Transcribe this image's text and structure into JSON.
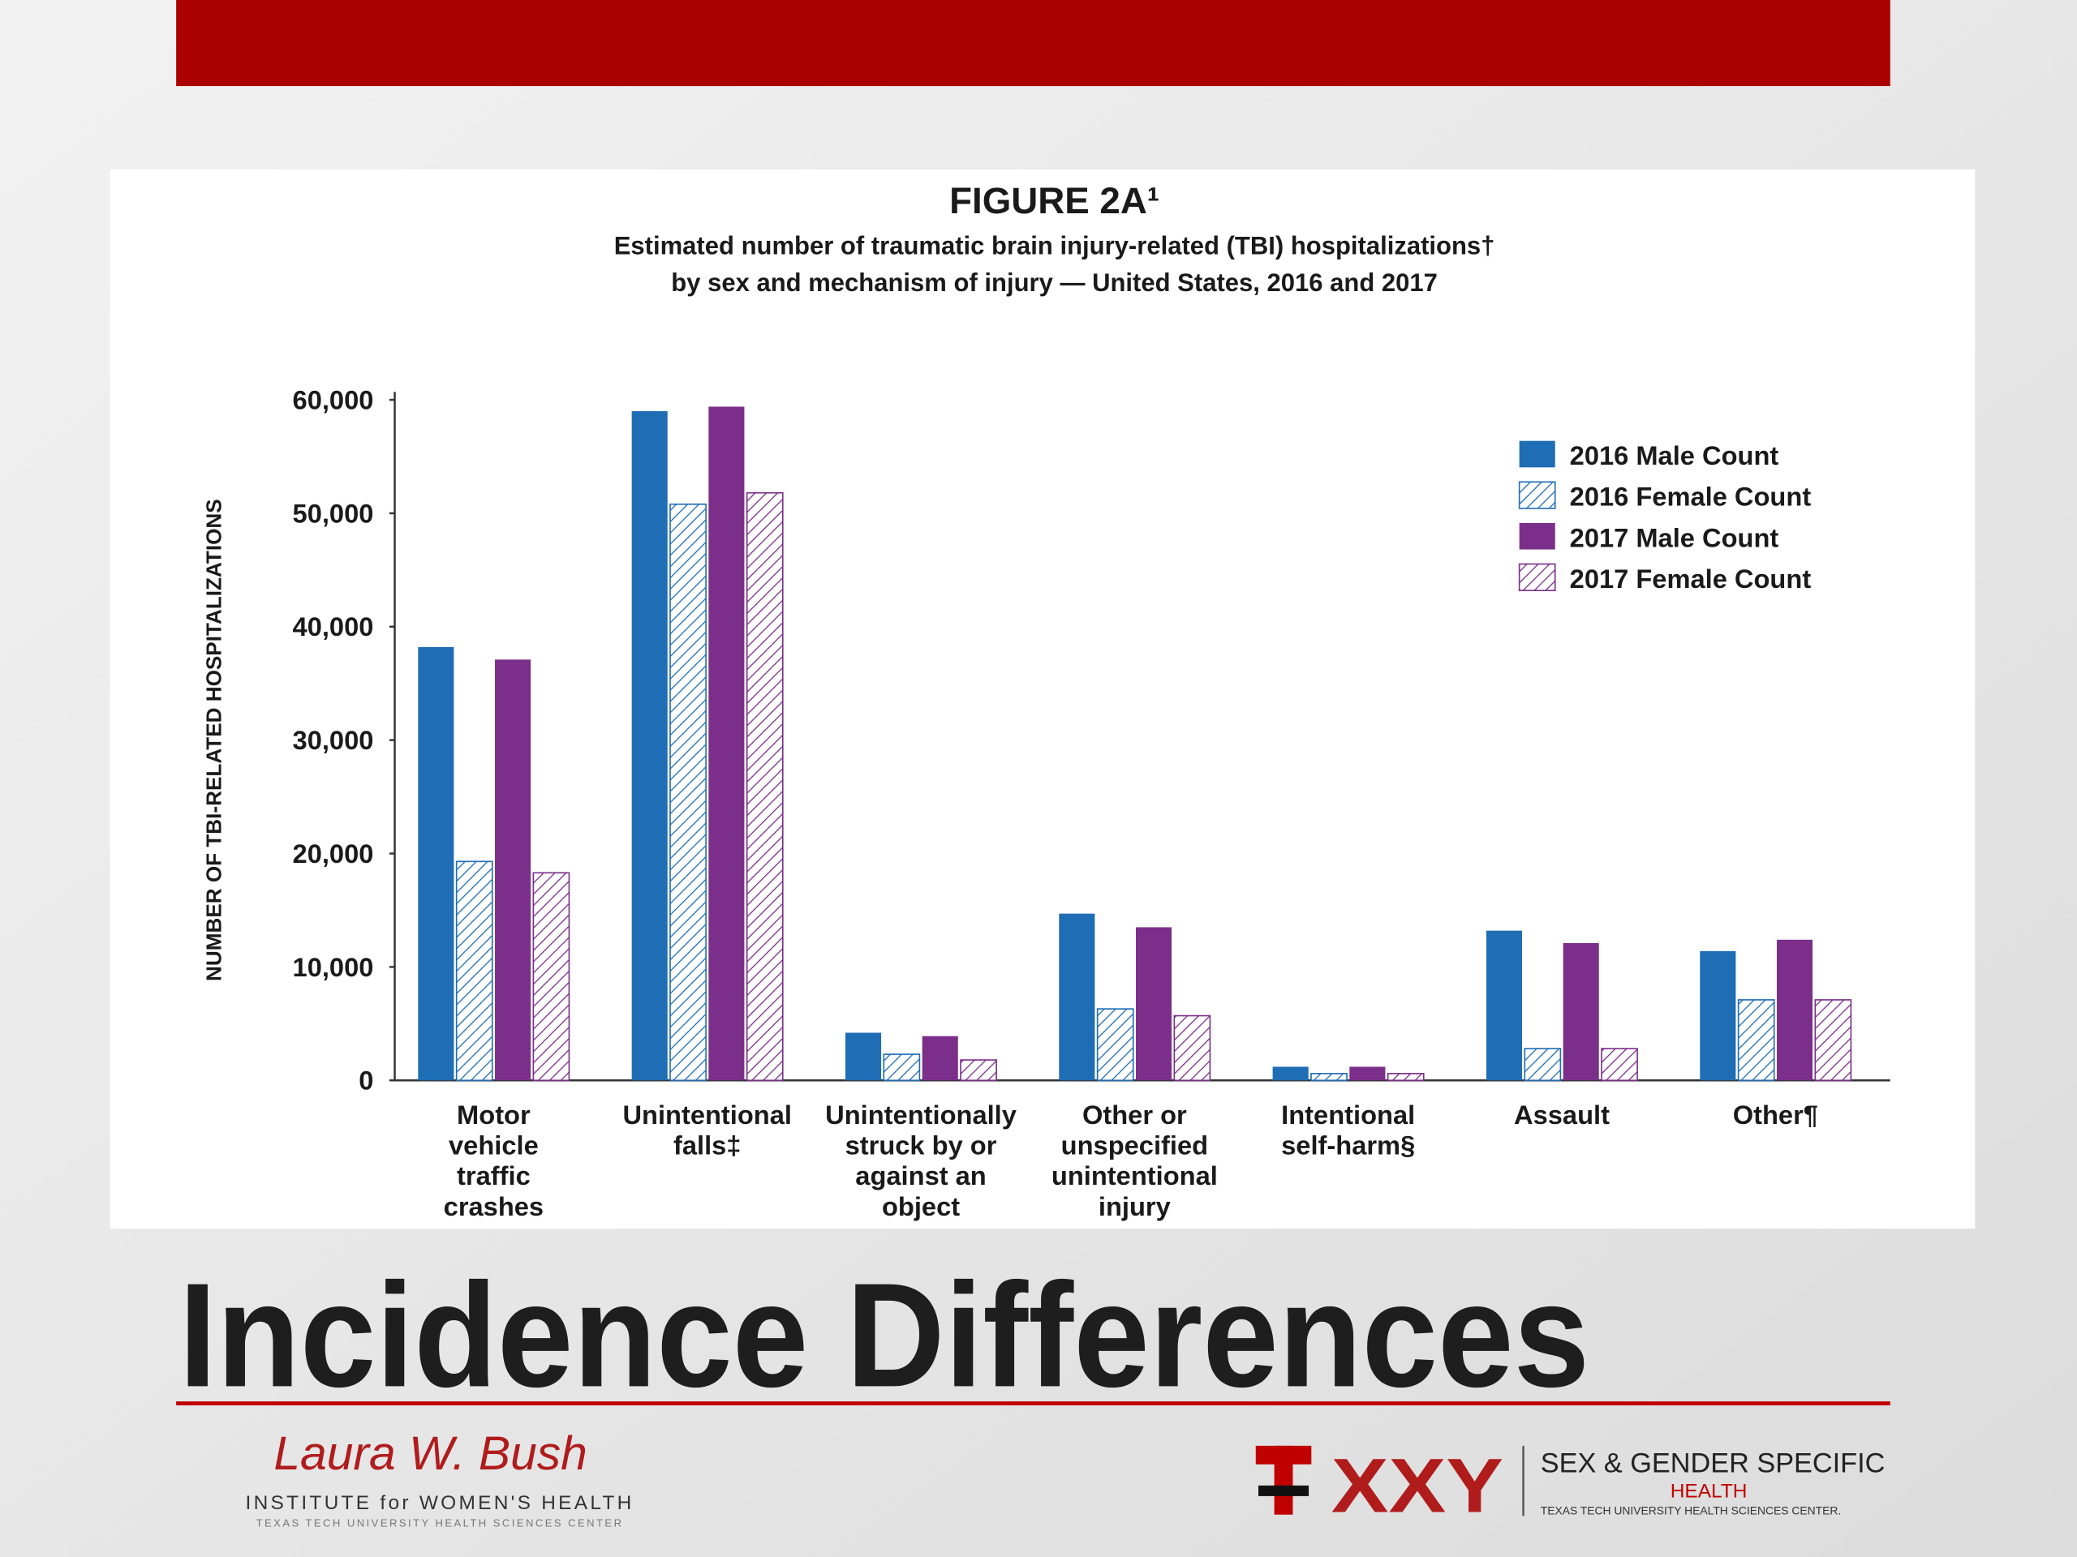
{
  "chart_data": {
    "type": "bar",
    "title": "FIGURE 2A¹",
    "subtitle": [
      "Estimated number of traumatic brain injury-related (TBI) hospitalizations†",
      "by sex and mechanism of injury — United States, 2016 and 2017"
    ],
    "y_label": "NUMBER OF TBI-RELATED HOSPITALIZATIONS",
    "categories": [
      [
        "Motor",
        "vehicle",
        "traffic",
        "crashes"
      ],
      [
        "Unintentional",
        "falls‡"
      ],
      [
        "Unintentionally",
        "struck by or",
        "against an",
        "object"
      ],
      [
        "Other or",
        "unspecified",
        "unintentional",
        "injury"
      ],
      [
        "Intentional",
        "self-harm§"
      ],
      [
        "Assault"
      ],
      [
        "Other¶"
      ]
    ],
    "series": [
      {
        "name": "2016 Male Count",
        "color": "#1f6db5",
        "hatch": false,
        "values": [
          38200,
          59000,
          4200,
          14700,
          1200,
          13200,
          11400
        ]
      },
      {
        "name": "2016 Female Count",
        "color": "#1f6db5",
        "hatch": true,
        "values": [
          19300,
          50800,
          2300,
          6300,
          600,
          2800,
          7100
        ]
      },
      {
        "name": "2017 Male Count",
        "color": "#7b2f8a",
        "hatch": false,
        "values": [
          37100,
          59400,
          3900,
          13500,
          1200,
          12100,
          12400
        ]
      },
      {
        "name": "2017 Female Count",
        "color": "#7b2f8a",
        "hatch": true,
        "values": [
          18300,
          51800,
          1800,
          5700,
          600,
          2800,
          7100
        ]
      }
    ],
    "ylim": [
      0,
      60000
    ],
    "yticks": [
      0,
      {
        "value": 10000,
        "label": "10,000"
      },
      {
        "value": 20000,
        "label": "20,000"
      },
      {
        "value": 30000,
        "label": "30,000"
      },
      {
        "value": 40000,
        "label": "40,000"
      },
      {
        "value": 50000,
        "label": "50,000"
      },
      {
        "value": 60000,
        "label": "60,000"
      }
    ],
    "legend": "top-right",
    "grid": false
  },
  "slide": {
    "title": "Incidence Differences",
    "logo_left": {
      "script": "Laura W. Bush",
      "name": "INSTITUTE for WOMEN'S HEALTH",
      "sub": "TEXAS TECH UNIVERSITY HEALTH SCIENCES CENTER"
    },
    "logo_right": {
      "mark": "XXY",
      "line1": "SEX & GENDER SPECIFIC",
      "line2": "HEALTH",
      "line3": "TEXAS TECH UNIVERSITY HEALTH SCIENCES CENTER."
    }
  }
}
